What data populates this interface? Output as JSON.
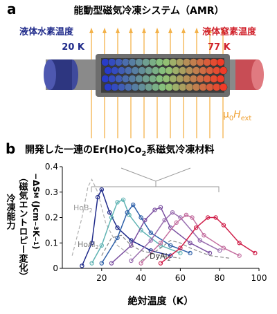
{
  "diagram": {
    "label": "a",
    "title": "能動型磁気冷凍システム（AMR）",
    "left_label": "液体水素温度",
    "left_temp": "20 K",
    "right_label": "液体窒素温度",
    "right_temp": "77 K",
    "field": [
      "μ",
      "0",
      "H",
      "ext"
    ]
  },
  "chart_data": {
    "type": "line",
    "label": "b",
    "title": [
      "開発した一連のEr(Ho)Co",
      "2",
      "系磁気冷凍材料"
    ],
    "ylabel": [
      "冷凍能力",
      "（磁気エントロピー変化）",
      [
        "−ΔS",
        "M",
        " (Jcm",
        "−3",
        "K",
        "−1",
        ")"
      ]
    ],
    "xlabel": "絶対温度（K）",
    "annotations": [
      [
        "HoB",
        "2"
      ],
      [
        "HoAl",
        "2"
      ],
      [
        "DyAl",
        "2"
      ]
    ],
    "xlim": [
      0,
      100
    ],
    "xticks": [
      20,
      40,
      60,
      80,
      100
    ],
    "ylim": [
      0,
      0.4
    ],
    "yticks": [
      0,
      0.1,
      0.2,
      0.3,
      0.4
    ],
    "series": [
      {
        "color": "#b0b0b0",
        "style": "dashed",
        "x": [
          5,
          10,
          13,
          15,
          18,
          22,
          28,
          35
        ],
        "values": [
          0.05,
          0.2,
          0.32,
          0.35,
          0.3,
          0.18,
          0.09,
          0.05
        ]
      },
      {
        "color": "#1f2a8a",
        "style": "markers",
        "x": [
          10,
          15,
          18,
          20,
          24,
          28,
          35,
          45,
          55
        ],
        "values": [
          0.01,
          0.1,
          0.28,
          0.31,
          0.22,
          0.16,
          0.11,
          0.07,
          0.05
        ]
      },
      {
        "color": "#5fb3b3",
        "style": "markers",
        "x": [
          15,
          20,
          25,
          28,
          31,
          34,
          40,
          50,
          60
        ],
        "values": [
          0.02,
          0.09,
          0.2,
          0.26,
          0.27,
          0.21,
          0.15,
          0.09,
          0.06
        ]
      },
      {
        "color": "#2d5fa8",
        "style": "markers",
        "x": [
          20,
          28,
          33,
          36,
          40,
          45,
          55,
          65
        ],
        "values": [
          0.02,
          0.12,
          0.22,
          0.25,
          0.2,
          0.14,
          0.09,
          0.06
        ]
      },
      {
        "color": "#7a4fa0",
        "style": "markers",
        "x": [
          25,
          35,
          42,
          47,
          50,
          55,
          65,
          75
        ],
        "values": [
          0.02,
          0.09,
          0.19,
          0.23,
          0.24,
          0.16,
          0.1,
          0.06
        ]
      },
      {
        "color": "#9a6fb0",
        "style": "markers",
        "x": [
          35,
          45,
          52,
          56,
          60,
          70,
          80
        ],
        "values": [
          0.03,
          0.11,
          0.19,
          0.22,
          0.2,
          0.11,
          0.07
        ]
      },
      {
        "color": "#c46fa0",
        "style": "markers",
        "x": [
          40,
          50,
          58,
          63,
          66,
          72,
          82,
          90
        ],
        "values": [
          0.02,
          0.1,
          0.18,
          0.21,
          0.2,
          0.13,
          0.08,
          0.05
        ]
      },
      {
        "color": "#d0204a",
        "style": "markers",
        "x": [
          50,
          60,
          68,
          74,
          78,
          82,
          90,
          98
        ],
        "values": [
          0.02,
          0.08,
          0.16,
          0.2,
          0.2,
          0.17,
          0.1,
          0.06
        ]
      },
      {
        "color": "#888888",
        "style": "dashed",
        "x": [
          20,
          25,
          30,
          35,
          40,
          50,
          60
        ],
        "values": [
          0.05,
          0.12,
          0.13,
          0.09,
          0.07,
          0.05,
          0.04
        ]
      },
      {
        "color": "#888888",
        "style": "dashed",
        "x": [
          40,
          50,
          55,
          60,
          65,
          75,
          85
        ],
        "values": [
          0.03,
          0.08,
          0.11,
          0.1,
          0.08,
          0.05,
          0.04
        ]
      }
    ]
  }
}
